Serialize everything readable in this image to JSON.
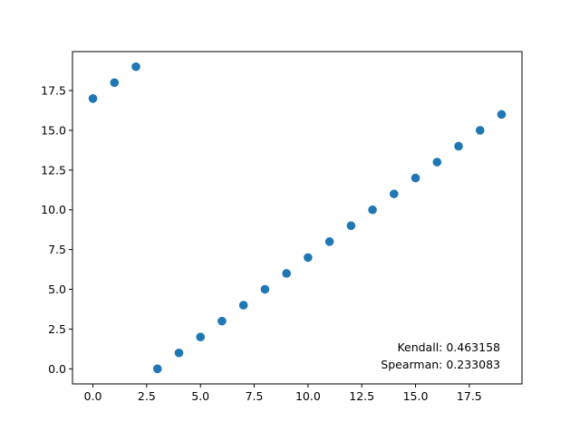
{
  "chart_data": {
    "type": "scatter",
    "title": "",
    "xlabel": "",
    "ylabel": "",
    "xlim": [
      -0.95,
      19.95
    ],
    "ylim": [
      -0.95,
      19.95
    ],
    "grid": false,
    "marker_color": "#1f77b4",
    "x_ticks": [
      {
        "value": 0.0,
        "label": "0.0"
      },
      {
        "value": 2.5,
        "label": "2.5"
      },
      {
        "value": 5.0,
        "label": "5.0"
      },
      {
        "value": 7.5,
        "label": "7.5"
      },
      {
        "value": 10.0,
        "label": "10.0"
      },
      {
        "value": 12.5,
        "label": "12.5"
      },
      {
        "value": 15.0,
        "label": "15.0"
      },
      {
        "value": 17.5,
        "label": "17.5"
      }
    ],
    "y_ticks": [
      {
        "value": 0.0,
        "label": "0.0"
      },
      {
        "value": 2.5,
        "label": "2.5"
      },
      {
        "value": 5.0,
        "label": "5.0"
      },
      {
        "value": 7.5,
        "label": "7.5"
      },
      {
        "value": 10.0,
        "label": "10.0"
      },
      {
        "value": 12.5,
        "label": "12.5"
      },
      {
        "value": 15.0,
        "label": "15.0"
      },
      {
        "value": 17.5,
        "label": "17.5"
      }
    ],
    "x": [
      0,
      1,
      2,
      3,
      4,
      5,
      6,
      7,
      8,
      9,
      10,
      11,
      12,
      13,
      14,
      15,
      16,
      17,
      18,
      19
    ],
    "y": [
      17,
      18,
      19,
      0,
      1,
      2,
      3,
      4,
      5,
      6,
      7,
      8,
      9,
      10,
      11,
      12,
      13,
      14,
      15,
      16
    ],
    "annotations": {
      "kendall": "Kendall: 0.463158",
      "spearman": "Spearman: 0.233083"
    }
  }
}
